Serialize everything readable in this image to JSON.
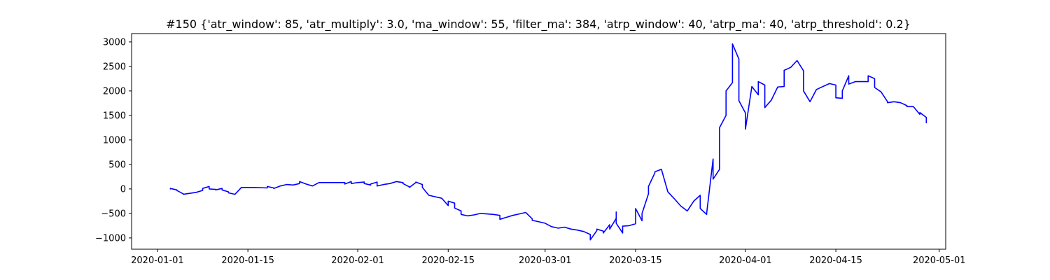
{
  "chart_data": {
    "type": "line",
    "title": "#150 {'atr_window': 85, 'atr_multiply': 3.0, 'ma_window': 55, 'filter_ma': 384, 'atrp_window': 40, 'atrp_ma': 40, 'atrp_threshold': 0.2}",
    "xlabel": "",
    "ylabel": "",
    "xlim": [
      "2019-12-28",
      "2020-05-02"
    ],
    "ylim": [
      -1230,
      3170
    ],
    "grid": false,
    "x_ticks": [
      "2020-01-01",
      "2020-01-15",
      "2020-02-01",
      "2020-02-15",
      "2020-03-01",
      "2020-03-15",
      "2020-04-01",
      "2020-04-15",
      "2020-05-01"
    ],
    "x_tick_labels": [
      "2020-01-01",
      "2020-01-15",
      "2020-02-01",
      "2020-02-15",
      "2020-03-01",
      "2020-03-15",
      "2020-04-01",
      "2020-04-15",
      "2020-05-01"
    ],
    "y_ticks": [
      -1000,
      -500,
      0,
      500,
      1000,
      1500,
      2000,
      2500,
      3000
    ],
    "y_tick_labels": [
      "−1000",
      "−500",
      "0",
      "500",
      "1000",
      "1500",
      "2000",
      "2500",
      "3000"
    ],
    "series": [
      {
        "color": "#0000ff",
        "points": [
          [
            "2020-01-03",
            0
          ],
          [
            "2020-01-03",
            10
          ],
          [
            "2020-01-04",
            -20
          ],
          [
            "2020-01-04",
            -30
          ],
          [
            "2020-01-05",
            -100
          ],
          [
            "2020-01-05",
            -110
          ],
          [
            "2020-01-07",
            -70
          ],
          [
            "2020-01-08",
            -30
          ],
          [
            "2020-01-08",
            10
          ],
          [
            "2020-01-09",
            50
          ],
          [
            "2020-01-09",
            0
          ],
          [
            "2020-01-10",
            -10
          ],
          [
            "2020-01-10",
            -20
          ],
          [
            "2020-01-11",
            10
          ],
          [
            "2020-01-11",
            -20
          ],
          [
            "2020-01-12",
            -60
          ],
          [
            "2020-01-12",
            -80
          ],
          [
            "2020-01-13",
            -110
          ],
          [
            "2020-01-14",
            30
          ],
          [
            "2020-01-14",
            30
          ],
          [
            "2020-01-16",
            30
          ],
          [
            "2020-01-18",
            20
          ],
          [
            "2020-01-18",
            50
          ],
          [
            "2020-01-19",
            20
          ],
          [
            "2020-01-19",
            10
          ],
          [
            "2020-01-20",
            60
          ],
          [
            "2020-01-21",
            90
          ],
          [
            "2020-01-22",
            80
          ],
          [
            "2020-01-23",
            110
          ],
          [
            "2020-01-23",
            150
          ],
          [
            "2020-01-24",
            100
          ],
          [
            "2020-01-25",
            60
          ],
          [
            "2020-01-26",
            130
          ],
          [
            "2020-01-28",
            130
          ],
          [
            "2020-01-30",
            130
          ],
          [
            "2020-01-30",
            100
          ],
          [
            "2020-01-31",
            150
          ],
          [
            "2020-01-31",
            110
          ],
          [
            "2020-02-01",
            130
          ],
          [
            "2020-02-02",
            140
          ],
          [
            "2020-02-02",
            110
          ],
          [
            "2020-02-03",
            80
          ],
          [
            "2020-02-03",
            100
          ],
          [
            "2020-02-04",
            140
          ],
          [
            "2020-02-04",
            60
          ],
          [
            "2020-02-05",
            90
          ],
          [
            "2020-02-06",
            110
          ],
          [
            "2020-02-07",
            150
          ],
          [
            "2020-02-08",
            130
          ],
          [
            "2020-02-08",
            110
          ],
          [
            "2020-02-09",
            40
          ],
          [
            "2020-02-09",
            30
          ],
          [
            "2020-02-10",
            130
          ],
          [
            "2020-02-10",
            140
          ],
          [
            "2020-02-11",
            90
          ],
          [
            "2020-02-11",
            30
          ],
          [
            "2020-02-12",
            -130
          ],
          [
            "2020-02-14",
            -190
          ],
          [
            "2020-02-15",
            -340
          ],
          [
            "2020-02-15",
            -250
          ],
          [
            "2020-02-16",
            -290
          ],
          [
            "2020-02-16",
            -390
          ],
          [
            "2020-02-17",
            -450
          ],
          [
            "2020-02-17",
            -520
          ],
          [
            "2020-02-18",
            -550
          ],
          [
            "2020-02-19",
            -530
          ],
          [
            "2020-02-20",
            -500
          ],
          [
            "2020-02-21",
            -510
          ],
          [
            "2020-02-22",
            -520
          ],
          [
            "2020-02-23",
            -540
          ],
          [
            "2020-02-23",
            -620
          ],
          [
            "2020-02-24",
            -580
          ],
          [
            "2020-02-25",
            -540
          ],
          [
            "2020-02-26",
            -510
          ],
          [
            "2020-02-27",
            -480
          ],
          [
            "2020-02-28",
            -610
          ],
          [
            "2020-02-28",
            -640
          ],
          [
            "2020-03-01",
            -700
          ],
          [
            "2020-03-02",
            -770
          ],
          [
            "2020-03-03",
            -800
          ],
          [
            "2020-03-04",
            -780
          ],
          [
            "2020-03-05",
            -820
          ],
          [
            "2020-03-06",
            -840
          ],
          [
            "2020-03-07",
            -870
          ],
          [
            "2020-03-08",
            -930
          ],
          [
            "2020-03-08",
            -1040
          ],
          [
            "2020-03-09",
            -850
          ],
          [
            "2020-03-09",
            -820
          ],
          [
            "2020-03-10",
            -860
          ],
          [
            "2020-03-10",
            -900
          ],
          [
            "2020-03-11",
            -730
          ],
          [
            "2020-03-11",
            -820
          ],
          [
            "2020-03-12",
            -600
          ],
          [
            "2020-03-12",
            -470
          ],
          [
            "2020-03-12",
            -560
          ],
          [
            "2020-03-12",
            -700
          ],
          [
            "2020-03-13",
            -900
          ],
          [
            "2020-03-13",
            -760
          ],
          [
            "2020-03-14",
            -750
          ],
          [
            "2020-03-15",
            -710
          ],
          [
            "2020-03-15",
            -400
          ],
          [
            "2020-03-16",
            -650
          ],
          [
            "2020-03-16",
            -500
          ],
          [
            "2020-03-17",
            -100
          ],
          [
            "2020-03-17",
            50
          ],
          [
            "2020-03-18",
            330
          ],
          [
            "2020-03-18",
            350
          ],
          [
            "2020-03-19",
            400
          ],
          [
            "2020-03-20",
            -60
          ],
          [
            "2020-03-21",
            -200
          ],
          [
            "2020-03-22",
            -350
          ],
          [
            "2020-03-23",
            -450
          ],
          [
            "2020-03-24",
            -250
          ],
          [
            "2020-03-25",
            -130
          ],
          [
            "2020-03-25",
            -400
          ],
          [
            "2020-03-26",
            -520
          ],
          [
            "2020-03-26",
            -500
          ],
          [
            "2020-03-27",
            610
          ],
          [
            "2020-03-27",
            200
          ],
          [
            "2020-03-28",
            400
          ],
          [
            "2020-03-28",
            1250
          ],
          [
            "2020-03-29",
            1500
          ],
          [
            "2020-03-29",
            2000
          ],
          [
            "2020-03-30",
            2170
          ],
          [
            "2020-03-30",
            2960
          ],
          [
            "2020-03-31",
            2650
          ],
          [
            "2020-03-31",
            1800
          ],
          [
            "2020-04-01",
            1550
          ],
          [
            "2020-04-01",
            1220
          ],
          [
            "2020-04-02",
            2090
          ],
          [
            "2020-04-03",
            1920
          ],
          [
            "2020-04-03",
            2190
          ],
          [
            "2020-04-04",
            2120
          ],
          [
            "2020-04-04",
            1660
          ],
          [
            "2020-04-05",
            1810
          ],
          [
            "2020-04-06",
            2080
          ],
          [
            "2020-04-07",
            2090
          ],
          [
            "2020-04-07",
            2420
          ],
          [
            "2020-04-08",
            2480
          ],
          [
            "2020-04-09",
            2620
          ],
          [
            "2020-04-10",
            2410
          ],
          [
            "2020-04-10",
            2000
          ],
          [
            "2020-04-11",
            1780
          ],
          [
            "2020-04-12",
            2030
          ],
          [
            "2020-04-14",
            2150
          ],
          [
            "2020-04-15",
            2120
          ],
          [
            "2020-04-15",
            1860
          ],
          [
            "2020-04-16",
            1850
          ],
          [
            "2020-04-16",
            2000
          ],
          [
            "2020-04-17",
            2310
          ],
          [
            "2020-04-17",
            2140
          ],
          [
            "2020-04-18",
            2190
          ],
          [
            "2020-04-20",
            2190
          ],
          [
            "2020-04-20",
            2310
          ],
          [
            "2020-04-21",
            2250
          ],
          [
            "2020-04-21",
            2070
          ],
          [
            "2020-04-22",
            1980
          ],
          [
            "2020-04-23",
            1780
          ],
          [
            "2020-04-23",
            1760
          ],
          [
            "2020-04-24",
            1780
          ],
          [
            "2020-04-25",
            1760
          ],
          [
            "2020-04-26",
            1700
          ],
          [
            "2020-04-26",
            1680
          ],
          [
            "2020-04-27",
            1680
          ],
          [
            "2020-04-28",
            1520
          ],
          [
            "2020-04-28",
            1560
          ],
          [
            "2020-04-29",
            1460
          ],
          [
            "2020-04-29",
            1350
          ]
        ]
      }
    ]
  }
}
